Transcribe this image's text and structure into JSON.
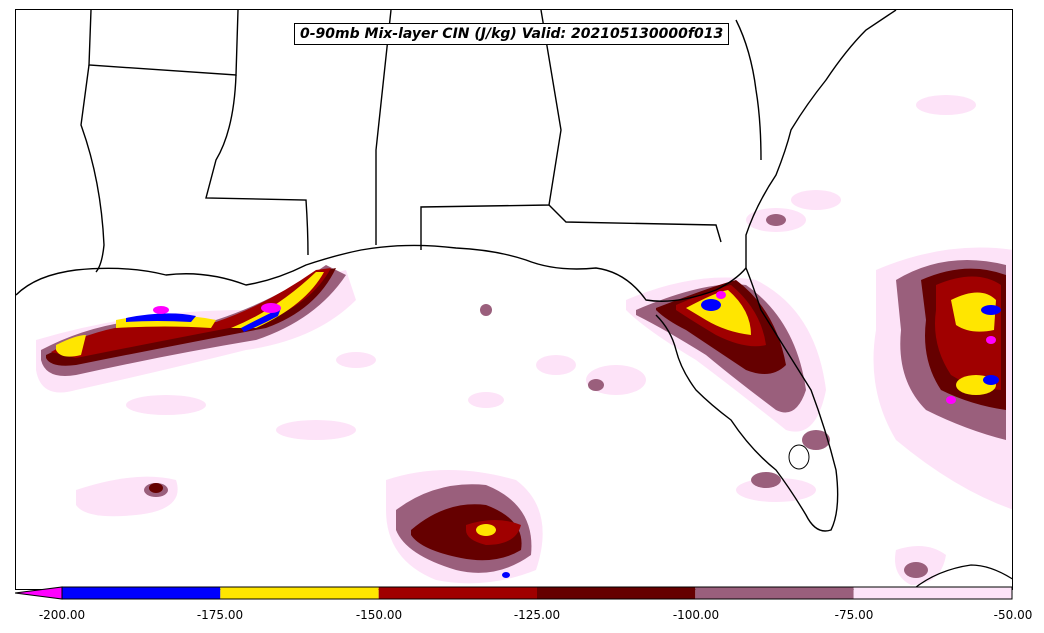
{
  "title": "0-90mb Mix-layer CIN (J/kg) Valid: 202105130000f013",
  "colorbar": {
    "extend": "min",
    "ticks": [
      "-200.00",
      "-175.00",
      "-150.00",
      "-125.00",
      "-100.00",
      "-75.00",
      "-50.00"
    ],
    "bins": [
      {
        "from": -200,
        "to": -175,
        "color": "#0000ff"
      },
      {
        "from": -175,
        "to": -150,
        "color": "#ffe600"
      },
      {
        "from": -150,
        "to": -125,
        "color": "#a00000"
      },
      {
        "from": -125,
        "to": -100,
        "color": "#650000"
      },
      {
        "from": -100,
        "to": -75,
        "color": "#9a5f7c"
      },
      {
        "from": -75,
        "to": -50,
        "color": "#fde3f8"
      }
    ],
    "under_color": "#ff00ff"
  },
  "colors": {
    "magenta": "#ff00ff",
    "blue": "#0000ff",
    "yellow": "#ffe600",
    "red": "#a00000",
    "darkred": "#650000",
    "mauve": "#9a5f7c",
    "lightpink": "#fde3f8"
  }
}
